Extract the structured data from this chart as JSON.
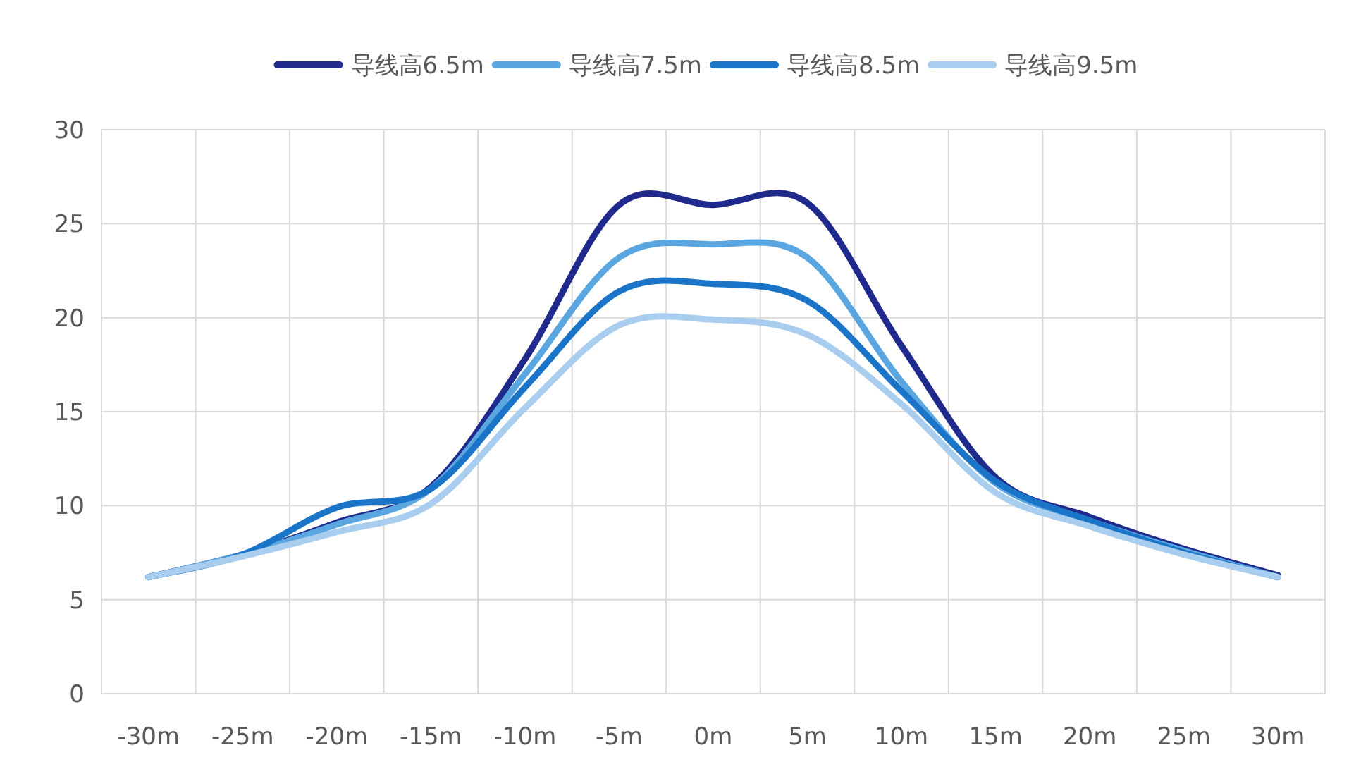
{
  "chart_data": {
    "type": "line",
    "categories": [
      "-30m",
      "-25m",
      "-20m",
      "-15m",
      "-10m",
      "-5m",
      "0m",
      "5m",
      "10m",
      "15m",
      "20m",
      "25m",
      "30m"
    ],
    "series": [
      {
        "name": "导线高6.5m",
        "color": "#1f2a8c",
        "values": [
          6.2,
          7.4,
          9.1,
          11.0,
          17.8,
          26.0,
          26.0,
          26.1,
          18.5,
          11.5,
          9.4,
          7.7,
          6.3
        ]
      },
      {
        "name": "导线高7.5m",
        "color": "#5aa6e0",
        "values": [
          6.2,
          7.4,
          9.0,
          10.9,
          17.0,
          23.2,
          23.9,
          23.2,
          16.6,
          11.2,
          9.2,
          7.6,
          6.2
        ]
      },
      {
        "name": "导线高8.5m",
        "color": "#1a75c8",
        "values": [
          6.2,
          7.4,
          9.9,
          10.9,
          16.3,
          21.4,
          21.8,
          20.9,
          16.1,
          11.3,
          9.2,
          7.5,
          6.2
        ]
      },
      {
        "name": "导线高9.5m",
        "color": "#a9cdee",
        "values": [
          6.2,
          7.3,
          8.6,
          10.1,
          15.2,
          19.6,
          19.9,
          19.1,
          15.4,
          10.7,
          8.9,
          7.4,
          6.2
        ]
      }
    ],
    "ylim": [
      0,
      30
    ],
    "yticks": [
      0,
      5,
      10,
      15,
      20,
      25,
      30
    ],
    "grid": true,
    "legend": "top",
    "marker": "none",
    "line_style": "solid"
  }
}
